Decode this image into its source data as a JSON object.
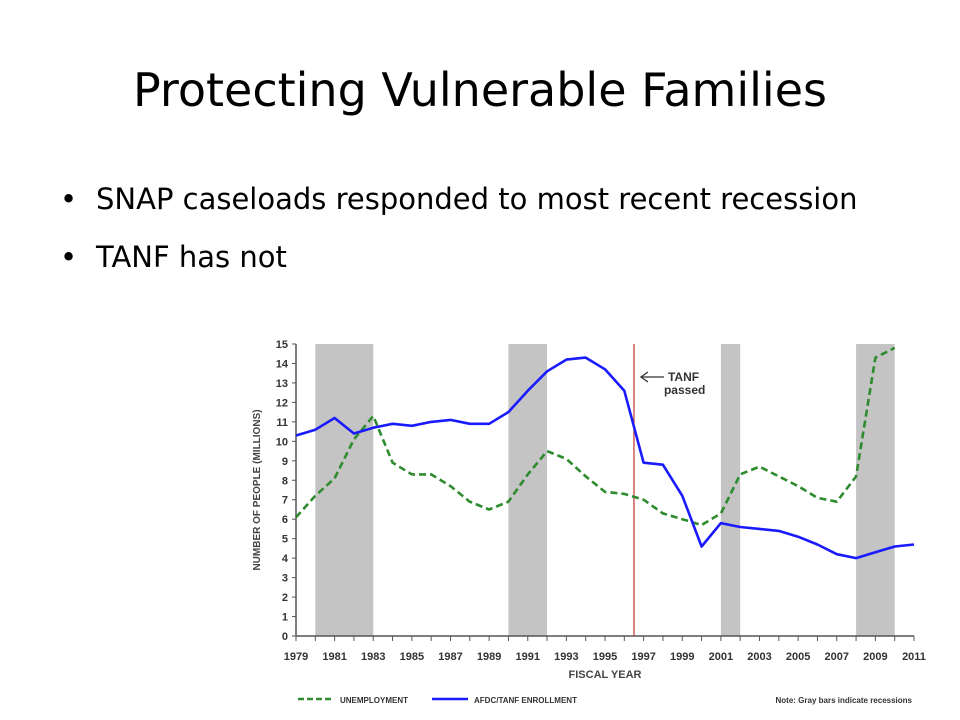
{
  "slide": {
    "title": "Protecting Vulnerable Families",
    "bullets": [
      "SNAP caseloads responded to most recent recession",
      "TANF has not"
    ]
  },
  "chart_data": {
    "type": "line",
    "title": "",
    "xlabel": "FISCAL YEAR",
    "ylabel": "NUMBER OF PEOPLE (MILLIONS)",
    "xlim": [
      1979,
      2011
    ],
    "ylim": [
      0,
      15
    ],
    "x_tick_labels": [
      "1979",
      "1981",
      "1983",
      "1985",
      "1987",
      "1989",
      "1991",
      "1993",
      "1995",
      "1997",
      "1999",
      "2001",
      "2003",
      "2005",
      "2007",
      "2009",
      "2011"
    ],
    "y_tick_labels": [
      "0",
      "1",
      "2",
      "3",
      "4",
      "5",
      "6",
      "7",
      "8",
      "9",
      "10",
      "11",
      "12",
      "13",
      "14",
      "15"
    ],
    "grid": false,
    "recessions": [
      [
        1980,
        1983
      ],
      [
        1990,
        1992
      ],
      [
        2001,
        2002
      ],
      [
        2008,
        2010
      ]
    ],
    "annotation": {
      "text_line1": "TANF",
      "text_line2": "passed",
      "x": 1996.5
    },
    "legend": {
      "placement": "bottom",
      "entries": [
        "UNEMPLOYMENT",
        "AFDC/TANF ENROLLMENT"
      ],
      "note": "Note: Gray bars indicate recessions"
    },
    "series": [
      {
        "name": "UNEMPLOYMENT",
        "color": "#2e8b2e",
        "style": "dashed",
        "x": [
          1979,
          1980,
          1981,
          1982,
          1983,
          1984,
          1985,
          1986,
          1987,
          1988,
          1989,
          1990,
          1991,
          1992,
          1993,
          1994,
          1995,
          1996,
          1997,
          1998,
          1999,
          2000,
          2001,
          2002,
          2003,
          2004,
          2005,
          2006,
          2007,
          2008,
          2009,
          2010
        ],
        "values": [
          6.1,
          7.2,
          8.1,
          10.1,
          11.3,
          8.9,
          8.3,
          8.3,
          7.7,
          6.9,
          6.5,
          6.9,
          8.3,
          9.5,
          9.1,
          8.2,
          7.4,
          7.3,
          7.0,
          6.3,
          6.0,
          5.7,
          6.3,
          8.3,
          8.7,
          8.2,
          7.7,
          7.1,
          6.9,
          8.2,
          14.3,
          14.8
        ]
      },
      {
        "name": "AFDC/TANF ENROLLMENT",
        "color": "#1a1aff",
        "style": "solid",
        "x": [
          1979,
          1980,
          1981,
          1982,
          1983,
          1984,
          1985,
          1986,
          1987,
          1988,
          1989,
          1990,
          1991,
          1992,
          1993,
          1994,
          1995,
          1996,
          1997,
          1998,
          1999,
          2000,
          2001,
          2002,
          2003,
          2004,
          2005,
          2006,
          2007,
          2008,
          2009,
          2010,
          2011
        ],
        "values": [
          10.3,
          10.6,
          11.2,
          10.4,
          10.7,
          10.9,
          10.8,
          11.0,
          11.1,
          10.9,
          10.9,
          11.5,
          12.6,
          13.6,
          14.2,
          14.3,
          13.7,
          12.6,
          8.9,
          8.8,
          7.2,
          4.6,
          5.8,
          5.6,
          5.5,
          5.4,
          5.1,
          4.7,
          4.2,
          4.0,
          4.3,
          4.6,
          4.7
        ]
      }
    ]
  }
}
